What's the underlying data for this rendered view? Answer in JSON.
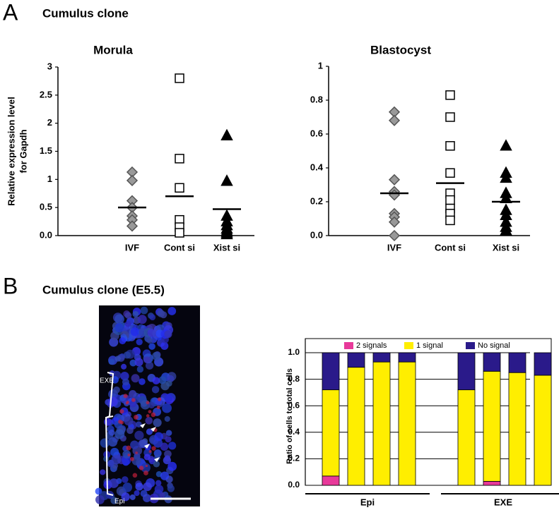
{
  "panels": [
    {
      "letter": "A",
      "title": "Cumulus clone"
    },
    {
      "letter": "B",
      "title": "Cumulus clone (E5.5)"
    }
  ],
  "image": {
    "labels": [
      "EXE",
      "Epi"
    ]
  },
  "chart_data": [
    {
      "type": "scatter",
      "title": "Morula",
      "ylabel": [
        "Relative expression level",
        "for Gapdh"
      ],
      "categories": [
        "IVF",
        "Cont si",
        "Xist si"
      ],
      "markers": [
        "diamond",
        "square",
        "triangle"
      ],
      "colors": [
        "#999999",
        "#ffffff",
        "#000000"
      ],
      "points": [
        [
          1.13,
          0.98,
          0.62,
          0.5,
          0.35,
          0.28,
          0.17
        ],
        [
          2.8,
          1.37,
          0.85,
          0.28,
          0.15,
          0.05
        ],
        [
          1.78,
          0.97,
          0.35,
          0.25,
          0.18,
          0.12,
          0.08,
          0.05,
          0.02
        ]
      ],
      "means": [
        0.5,
        0.7,
        0.47
      ],
      "ylim": [
        0,
        3
      ],
      "yticks": [
        {
          "value": 0,
          "label": "0.0"
        },
        0.5,
        1,
        1.5,
        2,
        2.5,
        3
      ]
    },
    {
      "type": "scatter",
      "title": "Blastocyst",
      "categories": [
        "IVF",
        "Cont si",
        "Xist si"
      ],
      "markers": [
        "diamond",
        "square",
        "triangle"
      ],
      "colors": [
        "#999999",
        "#ffffff",
        "#000000"
      ],
      "points": [
        [
          0.73,
          0.68,
          0.33,
          0.26,
          0.24,
          0.13,
          0.11,
          0.08,
          0.0
        ],
        [
          0.83,
          0.7,
          0.53,
          0.37,
          0.25,
          0.21,
          0.16,
          0.13,
          0.09
        ],
        [
          0.53,
          0.37,
          0.34,
          0.25,
          0.22,
          0.15,
          0.12,
          0.08,
          0.05,
          0.03
        ]
      ],
      "means": [
        0.25,
        0.31,
        0.2
      ],
      "ylim": [
        0,
        1
      ],
      "yticks": [
        {
          "value": 0,
          "label": "0.0"
        },
        0.2,
        0.4,
        0.6,
        0.8,
        1
      ]
    },
    {
      "type": "stacked-bar",
      "ylabel": "Ratio of cells to total cells",
      "groups": [
        {
          "label": "Epi",
          "size": 4
        },
        {
          "label": "EXE",
          "size": 4
        }
      ],
      "series": [
        {
          "name": "2 signals",
          "color": "#e8399a",
          "values": [
            0.07,
            0,
            0,
            0,
            0,
            0.03,
            0,
            0
          ]
        },
        {
          "name": "1 signal",
          "color": "#ffee00",
          "values": [
            0.65,
            0.89,
            0.93,
            0.93,
            0.72,
            0.83,
            0.85,
            0.83
          ]
        },
        {
          "name": "No signal",
          "color": "#2a1a8a",
          "values": [
            0.28,
            0.11,
            0.07,
            0.07,
            0.28,
            0.14,
            0.15,
            0.17
          ]
        }
      ],
      "ylim": [
        0,
        1
      ],
      "yticks": [
        {
          "value": 0,
          "label": "0.0"
        },
        0.2,
        0.4,
        0.6,
        0.8,
        {
          "value": 1,
          "label": "1.0"
        }
      ],
      "grid": true,
      "legend": "top"
    }
  ]
}
